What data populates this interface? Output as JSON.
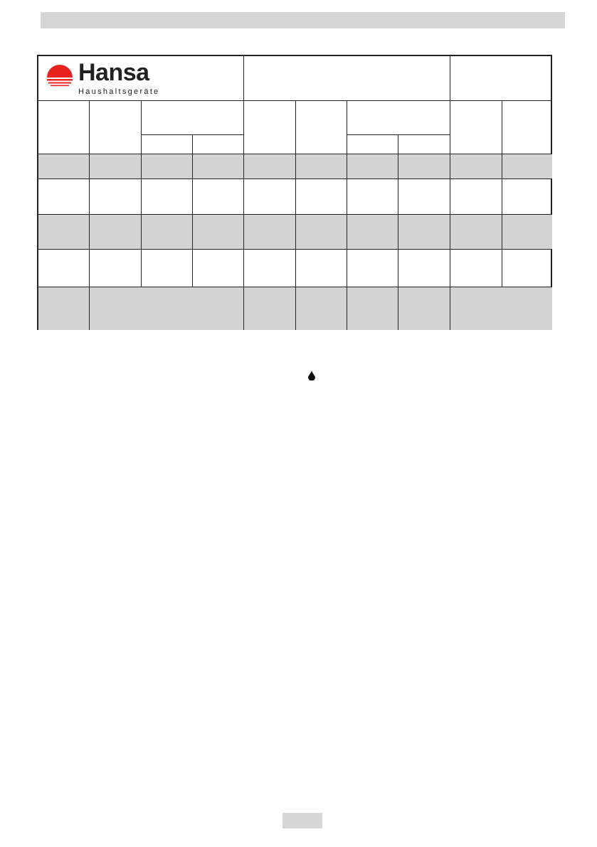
{
  "logo": {
    "brand": "Hansa",
    "tagline": "Haushaltsgeräte",
    "sun_color": "#e8231e"
  },
  "colors": {
    "shaded_row": "#d3d3d3",
    "header_bar": "#d6d6d6"
  },
  "icons": {
    "bullet": "drop-icon"
  }
}
